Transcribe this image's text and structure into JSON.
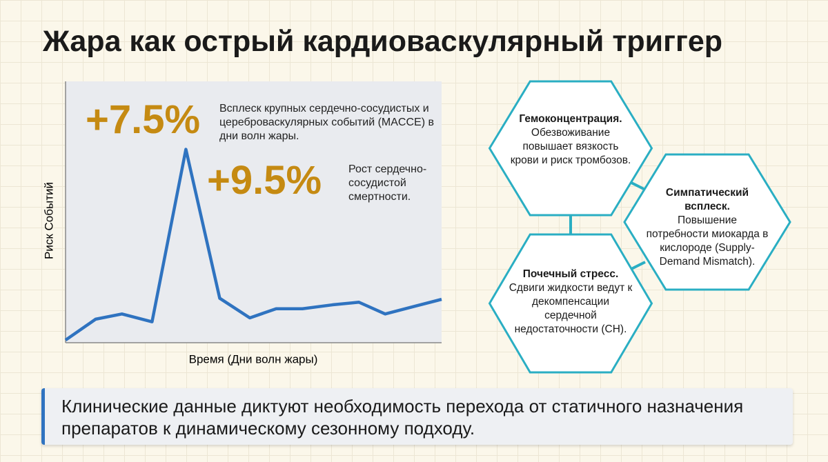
{
  "title": "Жара как острый кардиоваскулярный триггер",
  "chart_data": {
    "type": "line",
    "x_label": "Время (Дни волн жары)",
    "y_label": "Риск Событий",
    "x": [
      0,
      8,
      15,
      23,
      32,
      41,
      49,
      56,
      63,
      71,
      78,
      85,
      93,
      100
    ],
    "values": [
      1,
      9,
      11,
      8,
      74,
      17,
      9.5,
      13,
      13,
      14.5,
      15.5,
      11,
      14,
      16.6
    ],
    "xlim": [
      0,
      100
    ],
    "ylim": [
      0,
      100
    ],
    "color": "#2f73c0"
  },
  "callouts": [
    {
      "value": "+7.5%",
      "text": "Всплеск крупных сердечно-сосудистых и цереброваскулярных событий (MACCE) в дни волн жары."
    },
    {
      "value": "+9.5%",
      "text": "Рост сердечно-сосудистой смертности."
    }
  ],
  "hexagons": [
    {
      "title": "Гемоконцентрация.",
      "text": "Обезвоживание повышает вязкость крови и риск тромбозов."
    },
    {
      "title": "Симпатический всплеск.",
      "text": "Повышение потребности миокарда в кислороде (Supply-Demand Mismatch)."
    },
    {
      "title": "Почечный стресс.",
      "text": "Сдвиги жидкости ведут к декомпенсации сердечной недостаточности (СН)."
    }
  ],
  "footer": "Клинические данные диктуют необходимость перехода от статичного назначения препаратов к динамическому сезонному подходу."
}
